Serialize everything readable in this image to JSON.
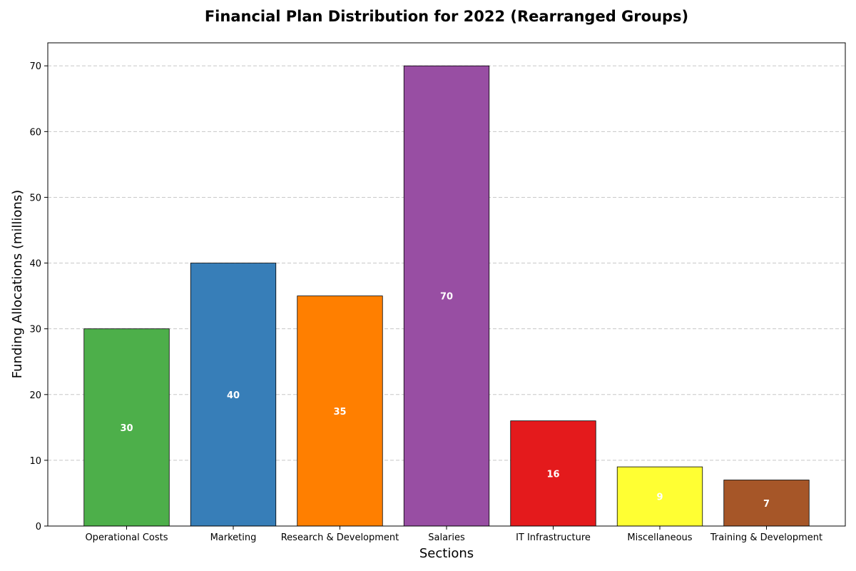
{
  "chart_data": {
    "type": "bar",
    "title": "Financial Plan Distribution for 2022 (Rearranged Groups)",
    "xlabel": "Sections",
    "ylabel": "Funding Allocations (millions)",
    "categories": [
      "Operational Costs",
      "Marketing",
      "Research & Development",
      "Salaries",
      "IT Infrastructure",
      "Miscellaneous",
      "Training & Development"
    ],
    "values": [
      30,
      40,
      35,
      70,
      16,
      9,
      7
    ],
    "data_labels": [
      "30",
      "40",
      "35",
      "70",
      "16",
      "9",
      "7"
    ],
    "colors": [
      "#4daf4a",
      "#377eb8",
      "#ff7f00",
      "#984ea3",
      "#e41a1c",
      "#ffff33",
      "#a65628"
    ],
    "ylim": [
      0,
      73.5
    ],
    "yticks": [
      0,
      10,
      20,
      30,
      40,
      50,
      60,
      70
    ],
    "ytick_labels": [
      "0",
      "10",
      "20",
      "30",
      "40",
      "50",
      "60",
      "70"
    ],
    "grid": "y-dashed",
    "legend": "none"
  }
}
